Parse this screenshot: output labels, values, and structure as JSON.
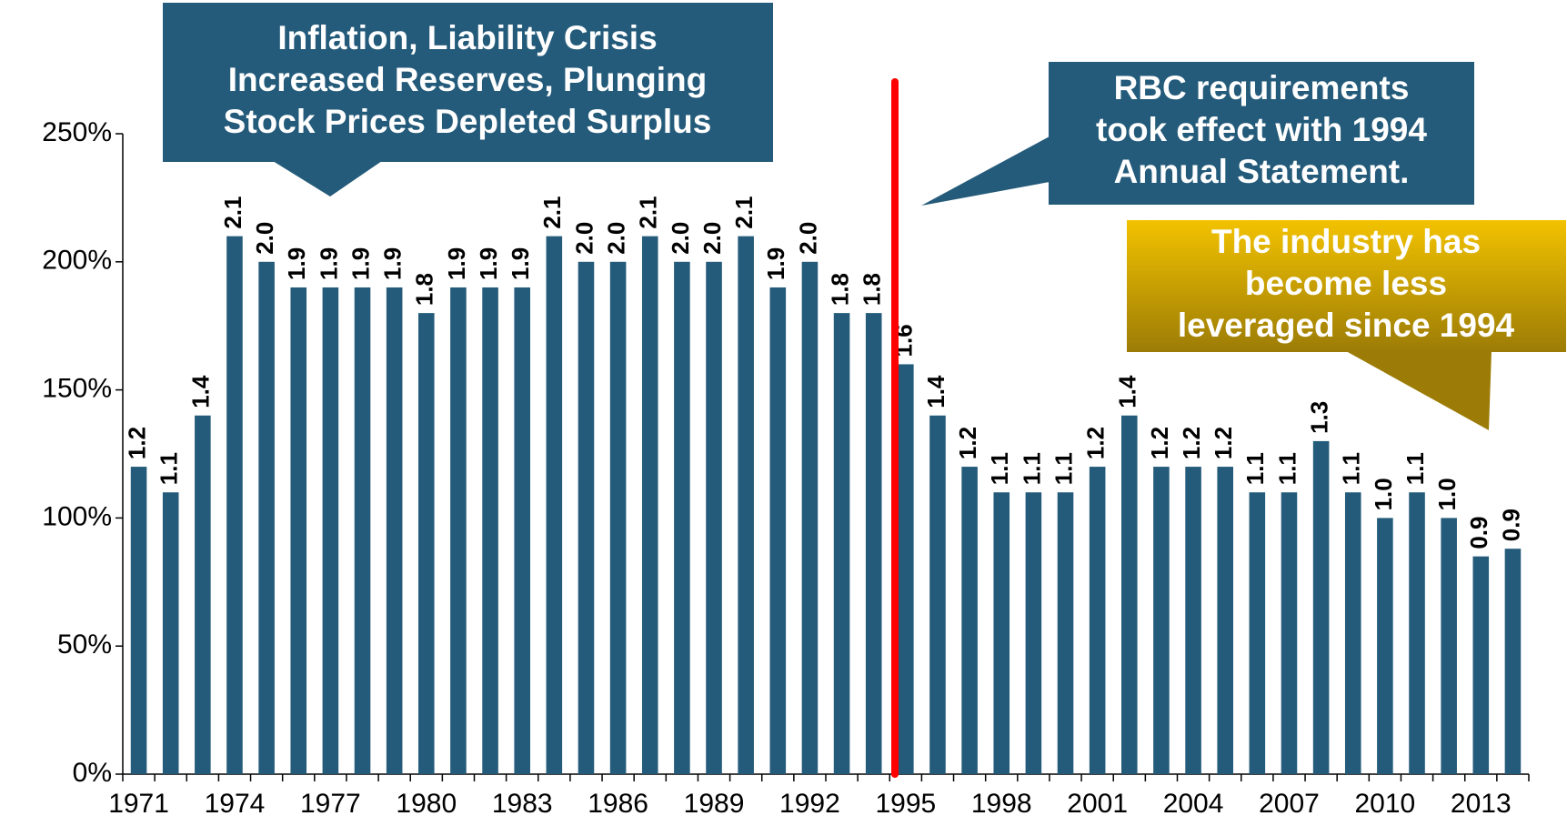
{
  "chart_data": {
    "type": "bar",
    "categories": [
      "1971",
      null,
      null,
      "1974",
      null,
      null,
      "1977",
      null,
      null,
      "1980",
      null,
      null,
      "1983",
      null,
      null,
      "1986",
      null,
      null,
      "1989",
      null,
      null,
      "1992",
      null,
      null,
      "1995",
      null,
      null,
      "1998",
      null,
      null,
      "2001",
      null,
      null,
      "2004",
      null,
      null,
      "2007",
      null,
      null,
      "2010",
      null,
      null,
      "2013",
      null
    ],
    "values": [
      120,
      110,
      140,
      210,
      200,
      190,
      190,
      190,
      190,
      180,
      190,
      190,
      190,
      210,
      200,
      200,
      210,
      200,
      200,
      210,
      190,
      200,
      180,
      180,
      160,
      140,
      120,
      110,
      110,
      110,
      120,
      140,
      120,
      120,
      120,
      110,
      110,
      130,
      110,
      100,
      110,
      100,
      85,
      88
    ],
    "value_labels": [
      "1.2",
      "1.1",
      "1.4",
      "2.1",
      "2.0",
      "1.9",
      "1.9",
      "1.9",
      "1.9",
      "1.8",
      "1.9",
      "1.9",
      "1.9",
      "2.1",
      "2.0",
      "2.0",
      "2.1",
      "2.0",
      "2.0",
      "2.1",
      "1.9",
      "2.0",
      "1.8",
      "1.8",
      "1.6",
      "1.4",
      "1.2",
      "1.1",
      "1.1",
      "1.1",
      "1.2",
      "1.4",
      "1.2",
      "1.2",
      "1.2",
      "1.1",
      "1.1",
      "1.3",
      "1.1",
      "1.0",
      "1.1",
      "1.0",
      "0.9",
      "0.9"
    ],
    "color": "#245b7a",
    "ylim": [
      0,
      250
    ],
    "yticks": [
      {
        "value": 0,
        "label": "0%"
      },
      {
        "value": 50,
        "label": "50%"
      },
      {
        "value": 100,
        "label": "100%"
      },
      {
        "value": 150,
        "label": "150%"
      },
      {
        "value": 200,
        "label": "200%"
      },
      {
        "value": 250,
        "label": "250%"
      }
    ],
    "annotations": [
      [
        "Inflation, Liability Crisis",
        "Increased Reserves, Plunging",
        "Stock Prices Depleted Surplus"
      ],
      [
        "RBC requirements",
        "took effect with 1994",
        "Annual Statement."
      ],
      [
        "The industry has",
        "become less",
        "leveraged since 1994"
      ]
    ]
  }
}
